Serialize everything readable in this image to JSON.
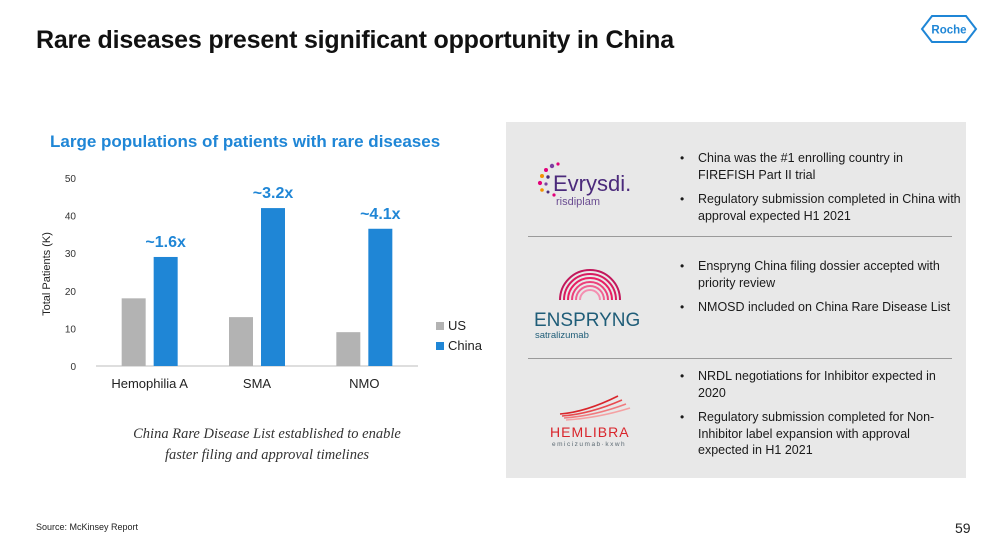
{
  "slide": {
    "title": "Rare diseases present significant opportunity in China",
    "logo_text": "Roche",
    "source": "Source: McKinsey Report",
    "page_number": "59",
    "caption_line1": "China Rare Disease List established to enable",
    "caption_line2": "faster filing and approval timelines",
    "chart_title": "Large populations of patients with rare diseases"
  },
  "chart_data": {
    "type": "bar",
    "title": "Large populations of patients with rare diseases",
    "xlabel": "",
    "ylabel": "Total Patients (K)",
    "ylim": [
      0,
      50
    ],
    "yticks": [
      0,
      10,
      20,
      30,
      40,
      50
    ],
    "categories": [
      "Hemophilia A",
      "SMA",
      "NMO"
    ],
    "series": [
      {
        "name": "US",
        "values": [
          18,
          13,
          9
        ],
        "color": "#b3b3b3"
      },
      {
        "name": "China",
        "values": [
          29,
          42,
          36.5
        ],
        "color": "#1f86d6"
      }
    ],
    "annotations": [
      "~1.6x",
      "~3.2x",
      "~4.1x"
    ],
    "legend": "right",
    "grid": false
  },
  "products": [
    {
      "brand": "Evrysdi.",
      "generic": "risdiplam",
      "bullets": [
        "China was the #1 enrolling country in FIREFISH Part II trial",
        "Regulatory submission completed in China with approval expected H1 2021"
      ]
    },
    {
      "brand": "ENSPRYNG",
      "generic": "satralizumab",
      "bullets": [
        "Enspryng China filing dossier accepted with priority review",
        "NMOSD included on China Rare Disease List"
      ]
    },
    {
      "brand": "HEMLIBRA",
      "generic": "emicizumab·kxwh",
      "bullets": [
        "NRDL negotiations for Inhibitor expected in 2020",
        "Regulatory submission completed for Non-Inhibitor label expansion with approval expected in H1 2021"
      ]
    }
  ],
  "colors": {
    "accent": "#1f86d6",
    "us_bar": "#b3b3b3",
    "panel_bg": "#e8e8e8",
    "evrysdi_purple": "#4b2a7b",
    "enspryng_teal": "#1f5d78",
    "hemlibra_red": "#d9252b"
  }
}
